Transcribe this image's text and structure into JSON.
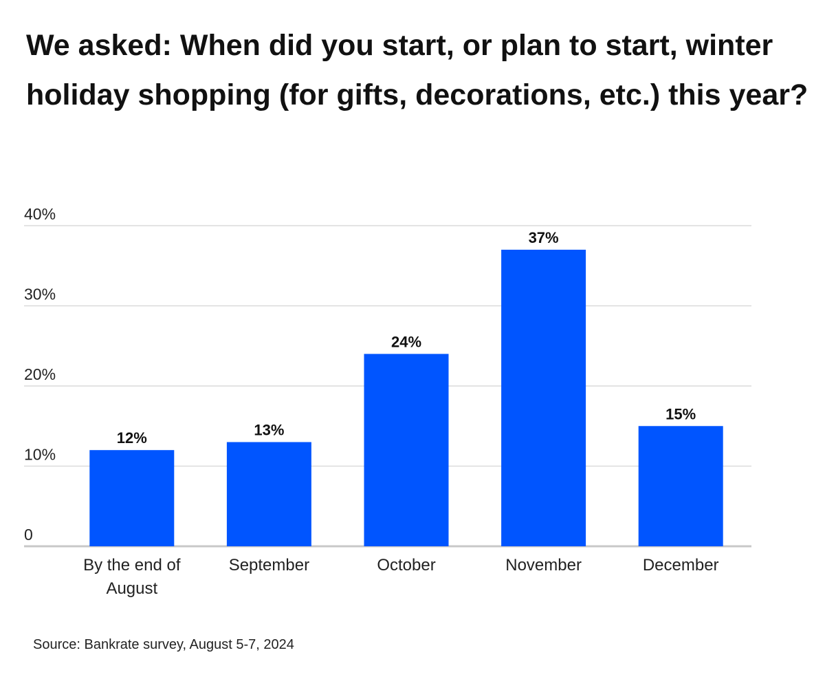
{
  "chart_data": {
    "type": "bar",
    "title": "We asked: When did you start, or plan to start, winter holiday shopping (for gifts, decorations, etc.) this year?",
    "categories": [
      [
        "By the end of",
        "August"
      ],
      [
        "September"
      ],
      [
        "October"
      ],
      [
        "November"
      ],
      [
        "December"
      ]
    ],
    "values": [
      12,
      13,
      24,
      37,
      15
    ],
    "data_labels": [
      "12%",
      "13%",
      "24%",
      "37%",
      "15%"
    ],
    "ylim": [
      0,
      40
    ],
    "yticks": [
      0,
      10,
      20,
      30,
      40
    ],
    "ytick_labels": [
      "0",
      "10%",
      "20%",
      "30%",
      "40%"
    ],
    "xlabel": "",
    "ylabel": "",
    "grid": true,
    "legend": "none",
    "bar_color": "#0055FF",
    "grid_color": "#DADADA",
    "baseline_color": "#C8C8C8"
  },
  "source": "Source: Bankrate survey, August 5-7, 2024"
}
